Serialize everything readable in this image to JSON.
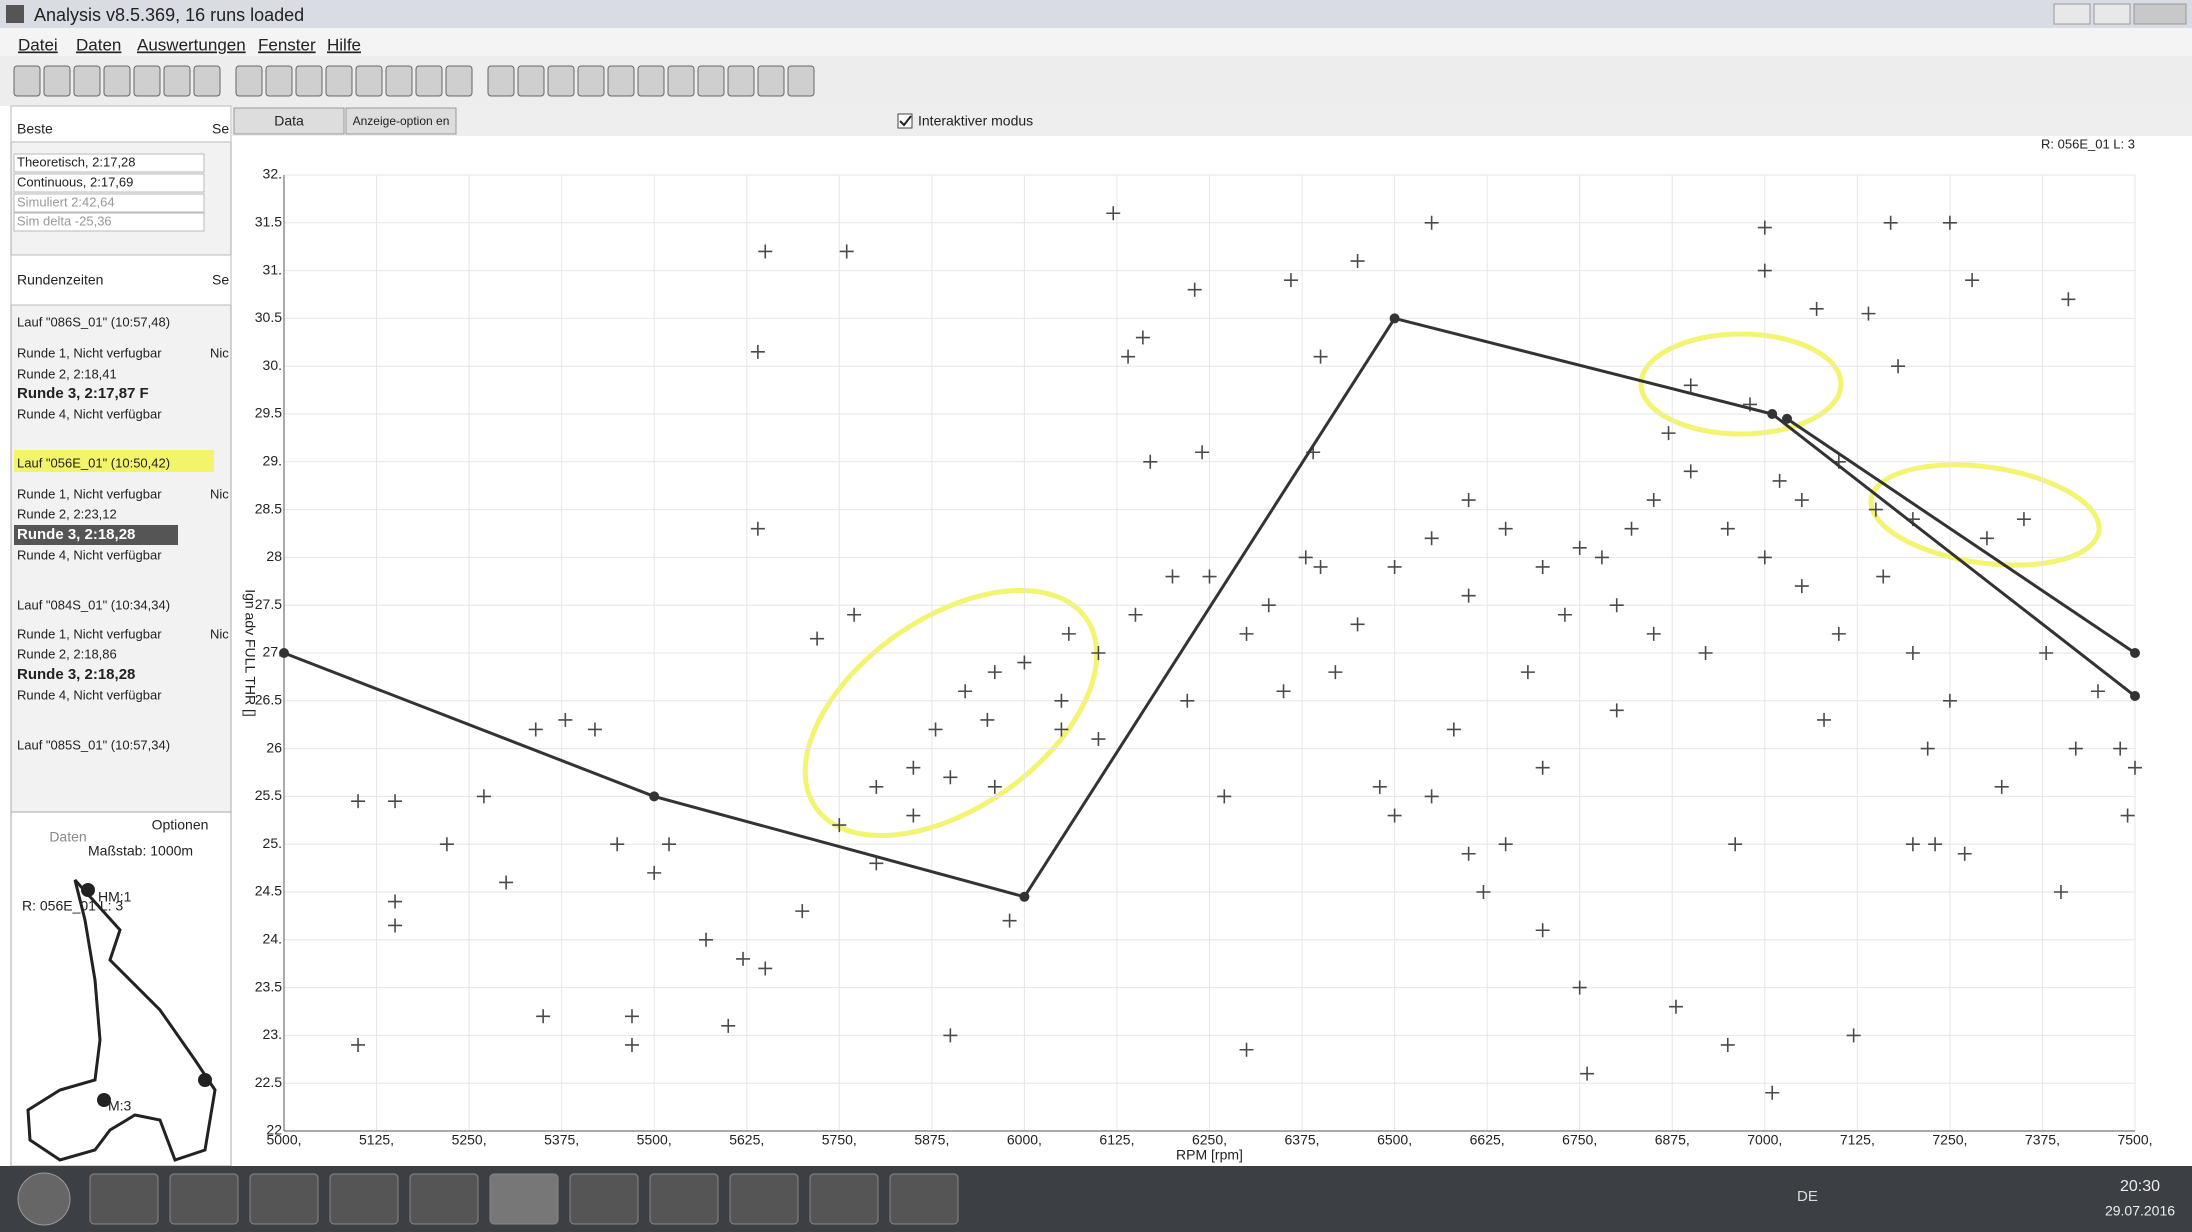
{
  "window": {
    "title": "Analysis v8.5.369, 16 runs loaded"
  },
  "menu": [
    "Datei",
    "Daten",
    "Auswertungen",
    "Fenster",
    "Hilfe"
  ],
  "best_panel": {
    "header": "Beste",
    "column": "Se",
    "rows": [
      "Theoretisch, 2:17,28",
      "Continuous, 2:17,69",
      "Simuliert 2:42,64",
      "Sim delta -25,36"
    ]
  },
  "laps_panel": {
    "header": "Rundenzeiten",
    "column": "Se",
    "rows": [
      [
        "Lauf \"086S_01\" (10:57,48)"
      ],
      [
        "Runde 1, Nicht verfugbar",
        "Nic"
      ],
      [
        "Runde 2, 2:18,41"
      ],
      [
        "Runde 3, 2:17,87 F"
      ],
      [
        "Runde 4, Nicht verfügbar"
      ],
      [
        "Lauf \"056E_01\" (10:50,42)"
      ],
      [
        "Runde 1, Nicht verfugbar",
        "Nic"
      ],
      [
        "Runde 2, 2:23,12"
      ],
      [
        "Runde 3, 2:18,28"
      ],
      [
        "Runde 4, Nicht verfügbar"
      ],
      [
        "Lauf \"084S_01\" (10:34,34)"
      ],
      [
        "Runde 1, Nicht verfugbar",
        "Nic"
      ],
      [
        "Runde 2, 2:18,86"
      ],
      [
        "Runde 3, 2:18,28"
      ],
      [
        "Runde 4, Nicht verfügbar"
      ],
      [
        "Lauf \"085S_01\" (10:57,34)"
      ]
    ]
  },
  "map_panel": {
    "tabs": [
      "Daten",
      "Optionen"
    ],
    "scale": "Maßstab: 1000m",
    "run": "R: 056E_01   L: 3",
    "markers": [
      "HM:1",
      "M:3"
    ]
  },
  "toolbar": {
    "tabs": [
      "Data",
      "Anzeige-option en"
    ],
    "checkbox": "Interaktiver modus"
  },
  "chart_data": {
    "type": "scatter",
    "annotation": "R: 056E_01   L: 3",
    "x_label": "RPM [rpm]",
    "y_label": "Ign adv FULL THR []",
    "color": "#4a4a4a",
    "grid": true,
    "xlim": [
      5000,
      7500
    ],
    "ylim": [
      22,
      32
    ],
    "xticks": [
      {
        "value": 5000,
        "label": "5000,"
      },
      {
        "value": 5125,
        "label": "5125,"
      },
      {
        "value": 5250,
        "label": "5250,"
      },
      {
        "value": 5375,
        "label": "5375,"
      },
      {
        "value": 5500,
        "label": "5500,"
      },
      {
        "value": 5625,
        "label": "5625,"
      },
      {
        "value": 5750,
        "label": "5750,"
      },
      {
        "value": 5875,
        "label": "5875,"
      },
      {
        "value": 6000,
        "label": "6000,"
      },
      {
        "value": 6125,
        "label": "6125,"
      },
      {
        "value": 6250,
        "label": "6250,"
      },
      {
        "value": 6375,
        "label": "6375,"
      },
      {
        "value": 6500,
        "label": "6500,"
      },
      {
        "value": 6625,
        "label": "6625,"
      },
      {
        "value": 6750,
        "label": "6750,"
      },
      {
        "value": 6875,
        "label": "6875,"
      },
      {
        "value": 7000,
        "label": "7000,"
      },
      {
        "value": 7125,
        "label": "7125,"
      },
      {
        "value": 7250,
        "label": "7250,"
      },
      {
        "value": 7375,
        "label": "7375,"
      },
      {
        "value": 7500,
        "label": "7500,"
      }
    ],
    "yticks": [
      22,
      22.5,
      {
        "value": 23,
        "label": "23."
      },
      23.5,
      {
        "value": 24,
        "label": "24."
      },
      24.5,
      {
        "value": 25,
        "label": "25."
      },
      25.5,
      26,
      26.5,
      {
        "value": 27,
        "label": "27."
      },
      27.5,
      28,
      28.5,
      {
        "value": 29,
        "label": "29."
      },
      29.5,
      {
        "value": 30,
        "label": "30."
      },
      30.5,
      {
        "value": 31,
        "label": "31."
      },
      31.5,
      {
        "value": 32,
        "label": "32."
      }
    ],
    "x": [
      5100,
      5150,
      5150,
      5150,
      5100,
      5220,
      5270,
      5300,
      5340,
      5350,
      5380,
      5420,
      5450,
      5470,
      5470,
      5500,
      5520,
      5570,
      5600,
      5620,
      5650,
      5640,
      5640,
      5650,
      5700,
      5720,
      5760,
      5770,
      5800,
      5850,
      5900,
      5900,
      5950,
      5960,
      5980,
      6000,
      6050,
      6060,
      6100,
      6120,
      6140,
      6160,
      6170,
      6200,
      6220,
      6230,
      6240,
      6270,
      6300,
      6330,
      6360,
      6380,
      6390,
      6400,
      6420,
      6450,
      6480,
      6500,
      6550,
      6580,
      6600,
      6620,
      6650,
      6680,
      6700,
      6730,
      6760,
      6750,
      6780,
      6800,
      6820,
      6850,
      6870,
      6880,
      6900,
      6920,
      6950,
      6960,
      6980,
      7000,
      7000,
      7010,
      7020,
      7050,
      7070,
      7080,
      7100,
      7120,
      7140,
      7160,
      7170,
      7180,
      7200,
      7220,
      7250,
      7270,
      7280,
      7300,
      7320,
      7350,
      7380,
      7400,
      7410,
      7420,
      7450,
      7480,
      7490,
      7500,
      5750,
      5800,
      5850,
      5880,
      5920,
      5960,
      6050,
      6100,
      6150,
      6250,
      6300,
      6350,
      6400,
      6450,
      6550,
      6600,
      6650,
      6700,
      6750,
      6800,
      6850,
      6900,
      6950,
      7000,
      7050,
      7100,
      7150,
      7200,
      7250,
      6500,
      6550,
      6600,
      6700,
      7200,
      7230
    ],
    "y": [
      25.45,
      24.4,
      24.15,
      25.45,
      22.9,
      25.0,
      25.5,
      24.6,
      26.2,
      23.2,
      26.3,
      26.2,
      25.0,
      23.2,
      22.9,
      24.7,
      25.0,
      24.0,
      23.1,
      23.8,
      31.2,
      30.15,
      28.3,
      23.7,
      24.3,
      27.15,
      31.2,
      27.4,
      24.8,
      25.3,
      25.7,
      23.0,
      26.3,
      25.6,
      24.2,
      26.9,
      26.5,
      27.2,
      26.1,
      31.6,
      30.1,
      30.3,
      29.0,
      27.8,
      26.5,
      30.8,
      29.1,
      25.5,
      22.85,
      27.5,
      30.9,
      28.0,
      29.1,
      30.1,
      26.8,
      31.1,
      25.6,
      27.9,
      31.5,
      26.2,
      28.6,
      24.5,
      25.0,
      26.8,
      24.1,
      27.4,
      22.6,
      23.5,
      28.0,
      26.4,
      28.3,
      27.2,
      29.3,
      23.3,
      29.8,
      27.0,
      22.9,
      25.0,
      29.6,
      31.45,
      31.0,
      22.4,
      28.8,
      27.7,
      30.6,
      26.3,
      29.0,
      23.0,
      30.55,
      27.8,
      31.5,
      30.0,
      28.4,
      26.0,
      31.5,
      24.9,
      30.9,
      28.2,
      25.6,
      28.4,
      27.0,
      24.5,
      30.7,
      26.0,
      26.6,
      26.0,
      25.3,
      25.8,
      25.2,
      25.6,
      25.8,
      26.2,
      26.6,
      26.8,
      26.2,
      27.0,
      27.4,
      27.8,
      27.2,
      26.6,
      27.9,
      27.3,
      28.2,
      27.6,
      28.3,
      27.9,
      28.1,
      27.5,
      28.6,
      28.9,
      28.3,
      28.0,
      28.6,
      27.2,
      28.5,
      27.0,
      26.5,
      25.3,
      25.5,
      24.9,
      25.8,
      25.0,
      25.0
    ],
    "lines": [
      {
        "color": "#333333",
        "x": [
          5000,
          5500,
          6000,
          6500,
          7010,
          7500
        ],
        "y": [
          27.0,
          25.5,
          24.45,
          30.5,
          29.5,
          26.55
        ]
      },
      {
        "color": "#333333",
        "x": [
          7030,
          7500
        ],
        "y": [
          29.45,
          27.0
        ]
      }
    ]
  },
  "taskbar": {
    "language": "DE",
    "time": "20:30",
    "date": "29.07.2016"
  }
}
